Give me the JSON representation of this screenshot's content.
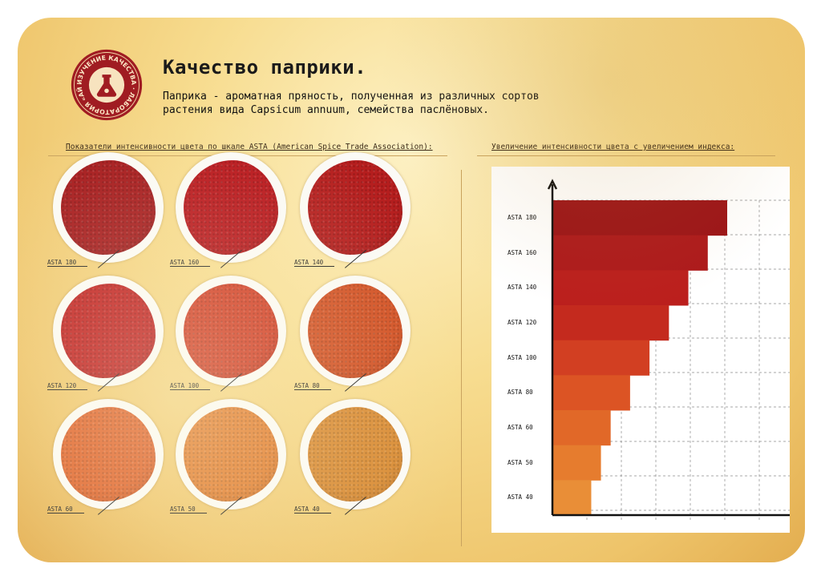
{
  "page": {
    "title": "Качество паприки.",
    "subtitle": "Паприка - ароматная пряность, полученная из различных сортов растения вида Capsicum annuum, семейства паслёновых.",
    "seal_text": "ИЗУЧЕНИЕ КАЧЕСТВА · ЛАБОРАТОРИЯ «АЙДИГО» ·"
  },
  "left_section": {
    "label": "Показатели интенсивности цвета по шкале ASTA (American Spice Trade Association):",
    "samples": [
      {
        "label": "ASTA 180",
        "color": "#a5171a"
      },
      {
        "label": "ASTA 160",
        "color": "#b8141a"
      },
      {
        "label": "ASTA 140",
        "color": "#b51e1e"
      },
      {
        "label": "ASTA 120",
        "color": "#c01b1c"
      },
      {
        "label": "ASTA 100",
        "color": "#d13a22"
      },
      {
        "label": "ASTA 80",
        "color": "#d24f22"
      },
      {
        "label": "ASTA 60",
        "color": "#e06128"
      },
      {
        "label": "ASTA 50",
        "color": "#e27d2e"
      },
      {
        "label": "ASTA 40",
        "color": "#d98a32"
      }
    ]
  },
  "right_section": {
    "label": "Увеличение интенсивности цвета с увеличением индекса:",
    "chart_data": {
      "type": "bar",
      "orientation": "horizontal",
      "categories": [
        "ASTA 180",
        "ASTA 160",
        "ASTA 140",
        "ASTA 120",
        "ASTA 100",
        "ASTA 80",
        "ASTA 60",
        "ASTA 50",
        "ASTA 40"
      ],
      "values": [
        180,
        160,
        140,
        120,
        100,
        80,
        60,
        50,
        40
      ],
      "colors": [
        "#9c1418",
        "#ad1a1c",
        "#bb1f1d",
        "#c42a1e",
        "#d23f22",
        "#dc5424",
        "#e16828",
        "#e67c2e",
        "#e98e37"
      ],
      "grid": true
    }
  }
}
